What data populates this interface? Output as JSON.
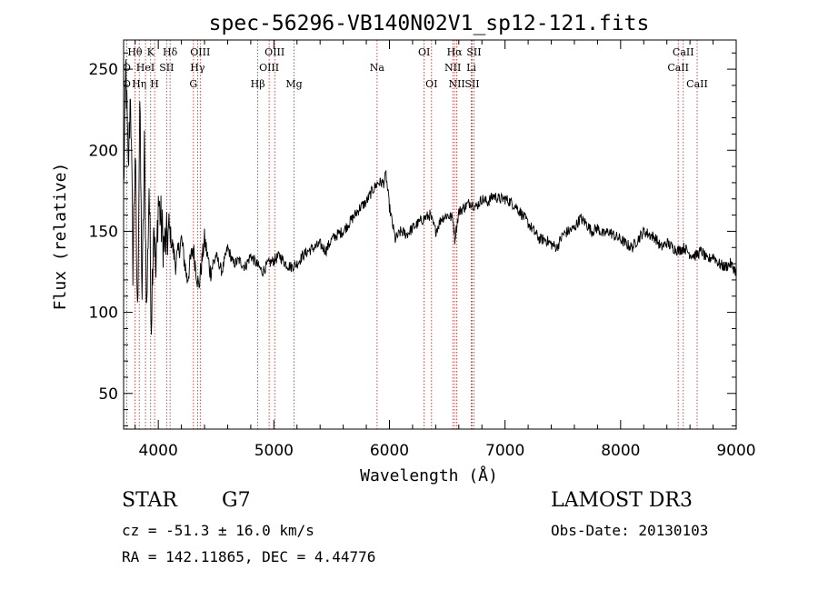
{
  "colors": {
    "spectrum": "#000000",
    "line_marker": "#b22222",
    "axis": "#000000",
    "background": "#ffffff"
  },
  "info": {
    "object_class": "STAR",
    "subclass": "G7",
    "survey": "LAMOST DR3",
    "redshift_text": "cz = -51.3 ± 16.0 km/s",
    "obs_date_text": "Obs-Date: 20130103",
    "coords_text": "RA = 142.11865, DEC =   4.44776"
  },
  "chart_data": {
    "type": "line",
    "title": "spec-56296-VB140N02V1_sp12-121.fits",
    "xlabel": "Wavelength (Å)",
    "ylabel": "Flux (relative)",
    "xlim": [
      3700,
      9000
    ],
    "ylim": [
      28,
      268
    ],
    "xticks": [
      4000,
      5000,
      6000,
      7000,
      8000,
      9000
    ],
    "yticks": [
      50,
      100,
      150,
      200,
      250
    ],
    "series": [
      {
        "name": "flux",
        "x": [
          3700,
          3720,
          3740,
          3760,
          3780,
          3800,
          3820,
          3840,
          3860,
          3880,
          3900,
          3920,
          3940,
          3960,
          3980,
          4000,
          4050,
          4100,
          4150,
          4200,
          4250,
          4300,
          4350,
          4400,
          4450,
          4500,
          4550,
          4600,
          4650,
          4700,
          4750,
          4800,
          4850,
          4900,
          4950,
          5000,
          5050,
          5100,
          5150,
          5200,
          5250,
          5300,
          5350,
          5400,
          5450,
          5500,
          5550,
          5600,
          5650,
          5700,
          5750,
          5800,
          5850,
          5900,
          5950,
          5970,
          6000,
          6050,
          6100,
          6150,
          6200,
          6250,
          6300,
          6350,
          6400,
          6450,
          6500,
          6550,
          6565,
          6600,
          6650,
          6700,
          6750,
          6800,
          6850,
          6900,
          6950,
          7000,
          7050,
          7100,
          7150,
          7200,
          7250,
          7300,
          7350,
          7400,
          7450,
          7500,
          7550,
          7600,
          7650,
          7700,
          7750,
          7800,
          7850,
          7900,
          7950,
          8000,
          8050,
          8100,
          8150,
          8200,
          8250,
          8300,
          8350,
          8400,
          8450,
          8500,
          8550,
          8600,
          8650,
          8700,
          8750,
          8800,
          8850,
          8900,
          8950,
          9000
        ],
        "y": [
          175,
          250,
          185,
          240,
          130,
          200,
          95,
          230,
          110,
          200,
          100,
          180,
          95,
          160,
          120,
          170,
          140,
          150,
          130,
          145,
          120,
          140,
          115,
          145,
          125,
          135,
          125,
          140,
          130,
          132,
          128,
          135,
          130,
          125,
          130,
          132,
          135,
          130,
          128,
          130,
          135,
          138,
          140,
          142,
          138,
          145,
          148,
          150,
          155,
          160,
          165,
          168,
          175,
          180,
          180,
          185,
          165,
          145,
          150,
          148,
          152,
          155,
          158,
          160,
          150,
          158,
          160,
          158,
          145,
          162,
          165,
          168,
          165,
          170,
          168,
          172,
          170,
          170,
          168,
          165,
          160,
          155,
          150,
          145,
          145,
          142,
          140,
          148,
          150,
          152,
          158,
          155,
          150,
          152,
          148,
          150,
          147,
          145,
          142,
          140,
          145,
          150,
          148,
          146,
          140,
          143,
          140,
          138,
          140,
          136,
          135,
          138,
          132,
          135,
          130,
          128,
          130,
          125
        ]
      }
    ],
    "lines_row1": [
      {
        "label": "Hθ",
        "wavelength": 3798
      },
      {
        "label": "K",
        "wavelength": 3934
      },
      {
        "label": "Hδ",
        "wavelength": 4102
      },
      {
        "label": "OIII",
        "wavelength": 4363
      },
      {
        "label": "OIII",
        "wavelength": 5007
      },
      {
        "label": "OI",
        "wavelength": 6300
      },
      {
        "label": "Hα",
        "wavelength": 6563
      },
      {
        "label": "SII",
        "wavelength": 6731
      },
      {
        "label": "CaII",
        "wavelength": 8542
      }
    ],
    "lines_row2": [
      {
        "label": "O",
        "wavelength": 3727
      },
      {
        "label": "HeI",
        "wavelength": 3889
      },
      {
        "label": "SII",
        "wavelength": 4072
      },
      {
        "label": "Hγ",
        "wavelength": 4340
      },
      {
        "label": "OIII",
        "wavelength": 4959
      },
      {
        "label": "Na",
        "wavelength": 5893
      },
      {
        "label": "NII",
        "wavelength": 6548
      },
      {
        "label": "Li",
        "wavelength": 6708
      },
      {
        "label": "CaII",
        "wavelength": 8498
      }
    ],
    "lines_row3": [
      {
        "label": "O",
        "wavelength": 3727
      },
      {
        "label": "Hη",
        "wavelength": 3835
      },
      {
        "label": "H",
        "wavelength": 3968
      },
      {
        "label": "G",
        "wavelength": 4304
      },
      {
        "label": "Hβ",
        "wavelength": 4861
      },
      {
        "label": "Mg",
        "wavelength": 5175
      },
      {
        "label": "OI",
        "wavelength": 6364
      },
      {
        "label": "NII",
        "wavelength": 6583
      },
      {
        "label": "SII",
        "wavelength": 6716
      },
      {
        "label": "CaII",
        "wavelength": 8662
      }
    ],
    "line_wavelengths": [
      3727,
      3798,
      3835,
      3889,
      3934,
      3968,
      4072,
      4102,
      4304,
      4340,
      4363,
      4861,
      4959,
      5007,
      5175,
      5893,
      6300,
      6364,
      6548,
      6563,
      6583,
      6708,
      6716,
      6731,
      8498,
      8542,
      8662
    ]
  }
}
